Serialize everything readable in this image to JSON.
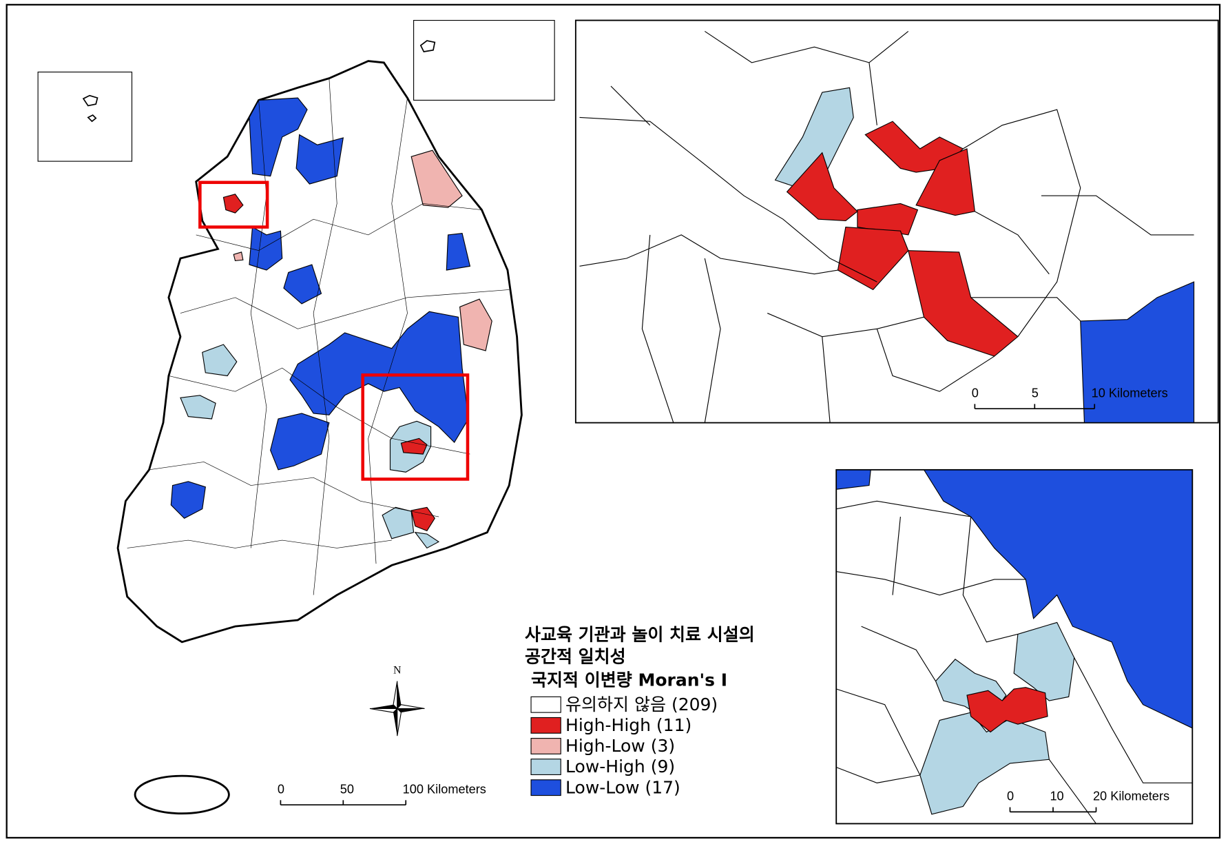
{
  "main_map": {
    "north_label": "N",
    "scale_bar": {
      "labels": [
        "0",
        "50",
        "100 Kilometers"
      ]
    }
  },
  "inset_seoul": {
    "scale_bar": {
      "labels": [
        "0",
        "5",
        "10 Kilometers"
      ]
    }
  },
  "inset_daegu": {
    "scale_bar": {
      "labels": [
        "0",
        "10",
        "20 Kilometers"
      ]
    }
  },
  "legend": {
    "title_lines": [
      "사교육 기관과 놀이 치료 시설의",
      "공간적 일치성"
    ],
    "subtitle": "국지적 이변량 Moran's I",
    "items": [
      {
        "label": "유의하지 않음 (209)",
        "color": "#ffffff"
      },
      {
        "label": "High-High (11)",
        "color": "#e02020"
      },
      {
        "label": "High-Low (3)",
        "color": "#f0b4b0"
      },
      {
        "label": "Low-High (9)",
        "color": "#b4d6e4"
      },
      {
        "label": "Low-Low (17)",
        "color": "#1e4fde"
      }
    ]
  }
}
